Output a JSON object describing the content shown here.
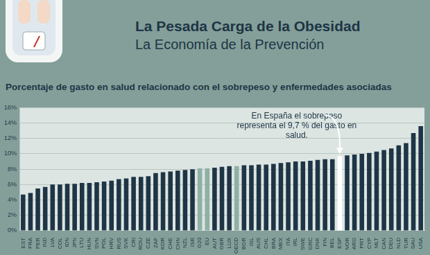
{
  "header": {
    "title": "La Pesada Carga de la Obesidad",
    "subtitle": "La Economía de la Prevención"
  },
  "chart_data": {
    "type": "bar",
    "title": "Porcentaje de gasto en salud relacionado con el sobrepeso y enfermedades asociadas",
    "categories": [
      "EST",
      "FRA",
      "PER",
      "IND",
      "LVA",
      "COL",
      "IDN",
      "JPN",
      "LTU",
      "HUN",
      "SVN",
      "POL",
      "HRV",
      "RUS",
      "SVK",
      "CRI",
      "ROU",
      "CZE",
      "ZAF",
      "KOR",
      "CHE",
      "CHN",
      "NZL",
      "ISR",
      "G20",
      "EU",
      "AUT",
      "GBR",
      "LUX",
      "OECD",
      "BGR",
      "ISL",
      "AUS",
      "CHL",
      "BRA",
      "MEX",
      "ITA",
      "IRL",
      "SWE",
      "GRC",
      "DNK",
      "FIN",
      "BEL",
      "ESP",
      "NOR",
      "ARG",
      "PRT",
      "CYP",
      "MLT",
      "CAN",
      "DEU",
      "NLD",
      "TUR",
      "SAU",
      "USA"
    ],
    "values": [
      4.7,
      4.9,
      5.5,
      5.7,
      6.0,
      6.0,
      6.1,
      6.1,
      6.2,
      6.2,
      6.3,
      6.4,
      6.5,
      6.7,
      6.8,
      7.0,
      7.0,
      7.1,
      7.5,
      7.6,
      7.7,
      7.8,
      7.9,
      8.0,
      8.1,
      8.1,
      8.2,
      8.3,
      8.4,
      8.4,
      8.5,
      8.5,
      8.6,
      8.6,
      8.7,
      8.8,
      8.9,
      9.0,
      9.0,
      9.1,
      9.2,
      9.3,
      9.3,
      9.7,
      9.8,
      9.9,
      10.0,
      10.1,
      10.3,
      10.5,
      10.7,
      11.1,
      11.4,
      12.7,
      13.6
    ],
    "colors": [
      "#1e3546",
      "#1e3546",
      "#1e3546",
      "#1e3546",
      "#1e3546",
      "#1e3546",
      "#1e3546",
      "#1e3546",
      "#1e3546",
      "#1e3546",
      "#1e3546",
      "#1e3546",
      "#1e3546",
      "#1e3546",
      "#1e3546",
      "#1e3546",
      "#1e3546",
      "#1e3546",
      "#1e3546",
      "#1e3546",
      "#1e3546",
      "#1e3546",
      "#1e3546",
      "#1e3546",
      "#8fb0a4",
      "#8fb0a4",
      "#1e3546",
      "#1e3546",
      "#1e3546",
      "#8fb0a4",
      "#1e3546",
      "#1e3546",
      "#1e3546",
      "#1e3546",
      "#1e3546",
      "#1e3546",
      "#1e3546",
      "#1e3546",
      "#1e3546",
      "#1e3546",
      "#1e3546",
      "#1e3546",
      "#1e3546",
      "#ffffff",
      "#1e3546",
      "#1e3546",
      "#1e3546",
      "#1e3546",
      "#1e3546",
      "#1e3546",
      "#1e3546",
      "#1e3546",
      "#1e3546",
      "#1e3546",
      "#1e3546"
    ],
    "ylim": [
      0,
      16
    ],
    "yticks": [
      {
        "value": 0,
        "label": "0%"
      },
      {
        "value": 2,
        "label": "2%"
      },
      {
        "value": 4,
        "label": "4%"
      },
      {
        "value": 6,
        "label": "6%"
      },
      {
        "value": 8,
        "label": "8%"
      },
      {
        "value": 10,
        "label": "10%"
      },
      {
        "value": 12,
        "label": "12%"
      },
      {
        "value": 14,
        "label": "14%"
      },
      {
        "value": 16,
        "label": "16%"
      }
    ],
    "grid": true,
    "annotation": {
      "lines": [
        "En España el sobrepeso",
        "representa el 9,7 % del gasto en",
        "salud."
      ],
      "category": "ESP"
    }
  }
}
